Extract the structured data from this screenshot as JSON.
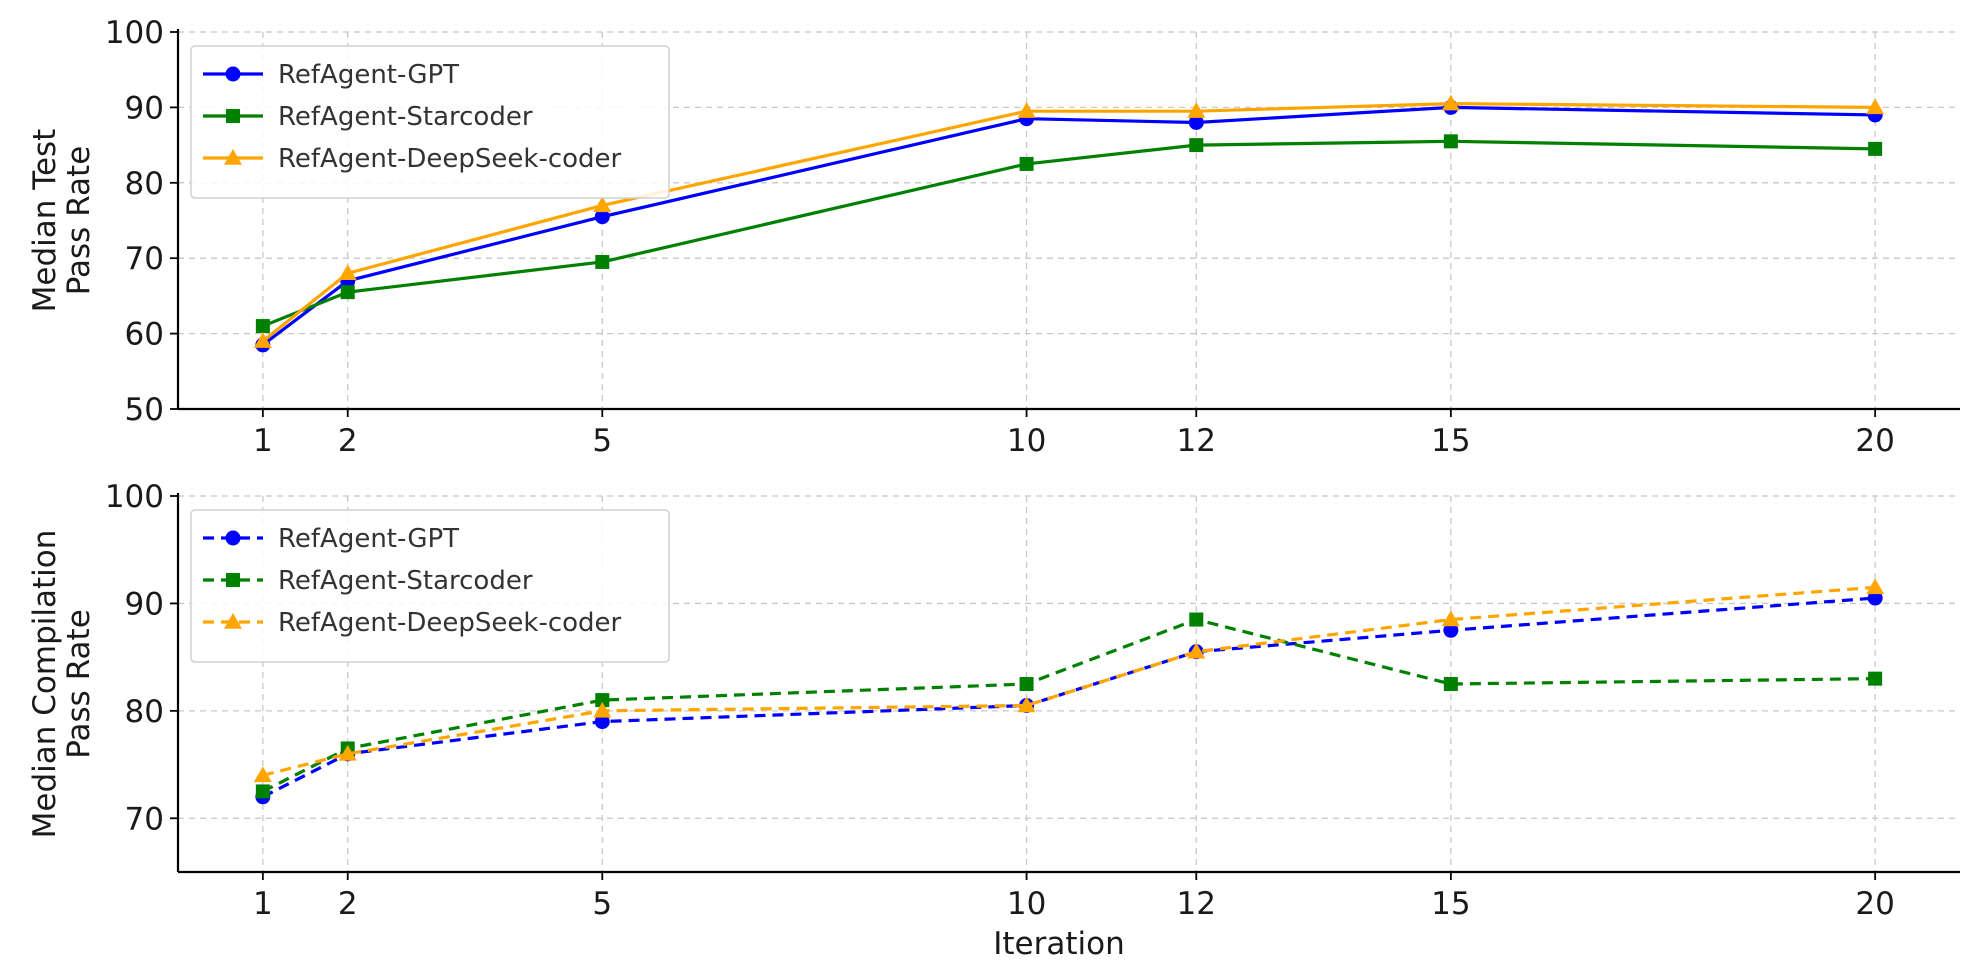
{
  "chart_data": [
    {
      "type": "line",
      "title": "",
      "xlabel": "",
      "ylabel_lines": [
        "Median Test",
        "Pass Rate"
      ],
      "x": [
        1,
        2,
        5,
        10,
        12,
        15,
        20
      ],
      "x_ticks": [
        1,
        2,
        5,
        10,
        12,
        15,
        20
      ],
      "xlim": [
        0.0,
        21.0
      ],
      "ylim": [
        50,
        100
      ],
      "y_ticks": [
        50,
        60,
        70,
        80,
        90,
        100
      ],
      "grid": true,
      "legend_position": "top-left",
      "line_style": "solid",
      "series": [
        {
          "name": "RefAgent-GPT",
          "color": "#0000ff",
          "marker": "circle",
          "values": [
            58.5,
            67.0,
            75.5,
            88.5,
            88.0,
            90.0,
            89.0
          ]
        },
        {
          "name": "RefAgent-Starcoder",
          "color": "#008000",
          "marker": "square",
          "values": [
            61.0,
            65.5,
            69.5,
            82.5,
            85.0,
            85.5,
            84.5
          ]
        },
        {
          "name": "RefAgent-DeepSeek-coder",
          "color": "#ffa500",
          "marker": "triangle",
          "values": [
            59.0,
            68.0,
            77.0,
            89.5,
            89.5,
            90.5,
            90.0
          ]
        }
      ]
    },
    {
      "type": "line",
      "title": "",
      "xlabel": "Iteration",
      "ylabel_lines": [
        "Median Compilation",
        "Pass Rate"
      ],
      "x": [
        1,
        2,
        5,
        10,
        12,
        15,
        20
      ],
      "x_ticks": [
        1,
        2,
        5,
        10,
        12,
        15,
        20
      ],
      "xlim": [
        0.0,
        21.0
      ],
      "ylim": [
        65,
        100
      ],
      "y_ticks": [
        70,
        80,
        90,
        100
      ],
      "grid": true,
      "legend_position": "top-left",
      "line_style": "dashed",
      "series": [
        {
          "name": "RefAgent-GPT",
          "color": "#0000ff",
          "marker": "circle",
          "values": [
            72.0,
            76.0,
            79.0,
            80.5,
            85.5,
            87.5,
            90.5
          ]
        },
        {
          "name": "RefAgent-Starcoder",
          "color": "#008000",
          "marker": "square",
          "values": [
            72.5,
            76.5,
            81.0,
            82.5,
            88.5,
            82.5,
            83.0
          ]
        },
        {
          "name": "RefAgent-DeepSeek-coder",
          "color": "#ffa500",
          "marker": "triangle",
          "values": [
            74.0,
            76.0,
            80.0,
            80.5,
            85.5,
            88.5,
            91.5
          ]
        }
      ]
    }
  ]
}
